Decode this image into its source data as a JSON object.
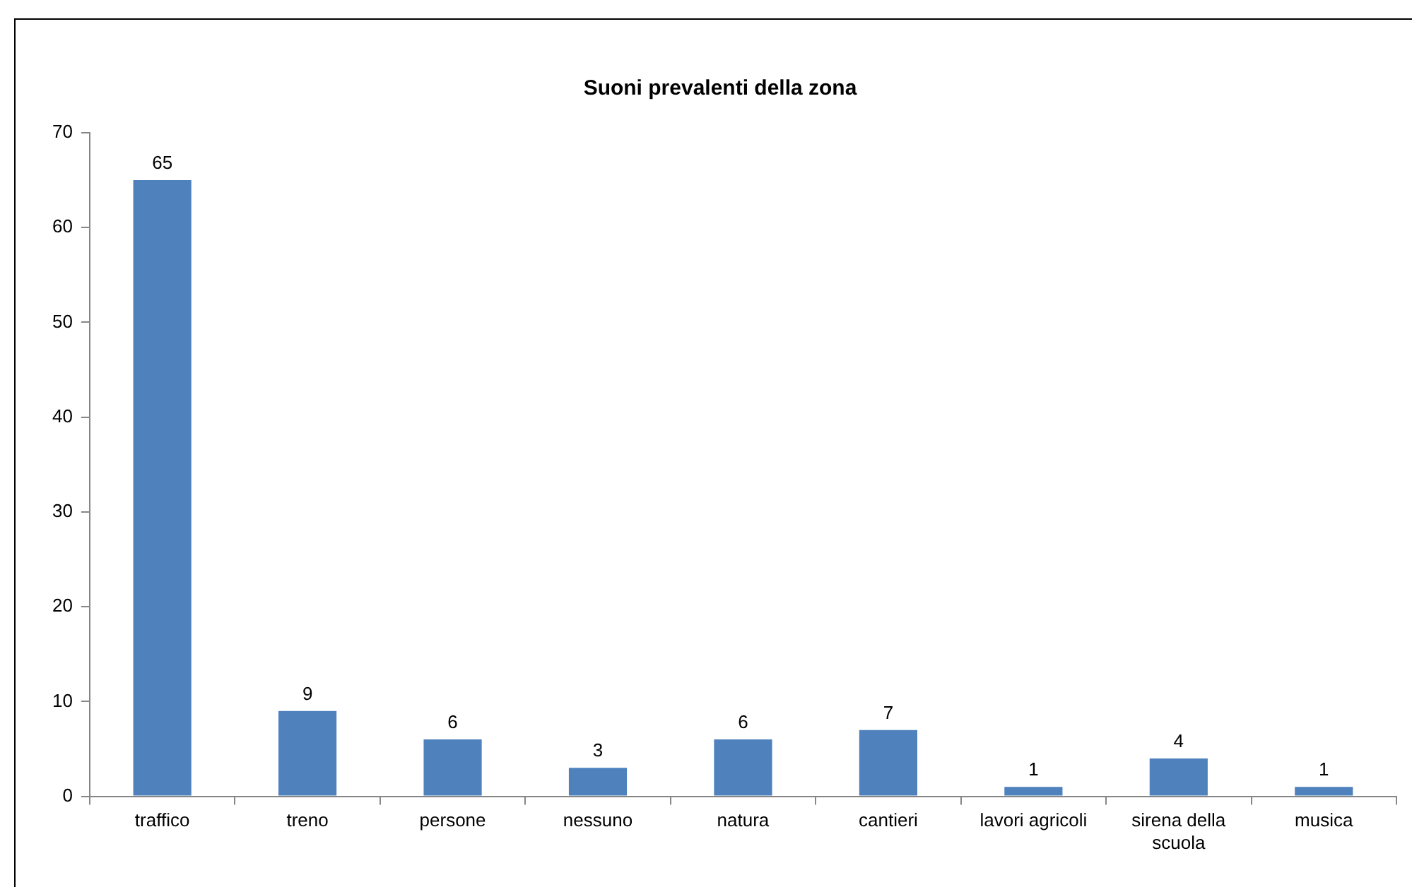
{
  "chart_data": {
    "type": "bar",
    "title": "Suoni prevalenti della zona",
    "categories": [
      "traffico",
      "treno",
      "persone",
      "nessuno",
      "natura",
      "cantieri",
      "lavori agricoli",
      "sirena della scuola",
      "musica"
    ],
    "values": [
      65,
      9,
      6,
      3,
      6,
      7,
      1,
      4,
      1
    ],
    "color": "#4f81bd",
    "ylim": [
      0,
      70
    ],
    "yticks": [
      0,
      10,
      20,
      30,
      40,
      50,
      60,
      70
    ],
    "grid": false,
    "legend": false,
    "data_labels": true
  }
}
